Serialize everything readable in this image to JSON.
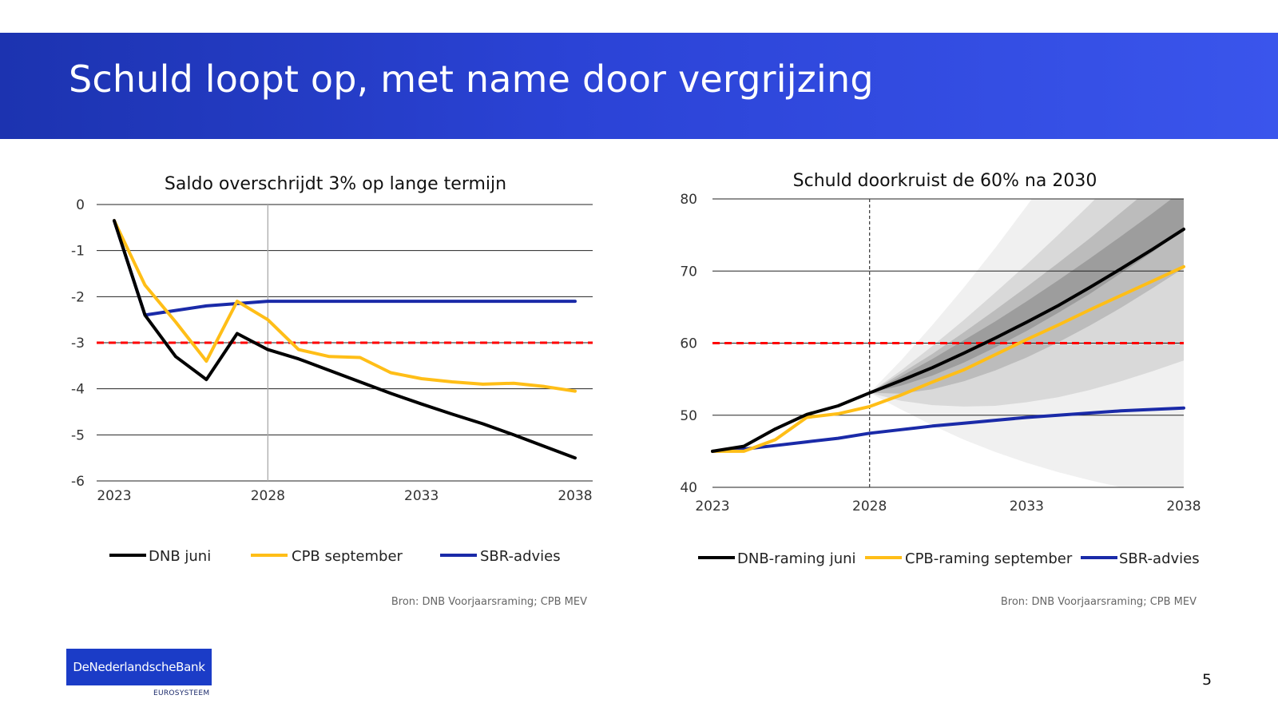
{
  "slide": {
    "title": "Schuld loopt op, met name door vergrijzing",
    "page_number": "5",
    "logo_text": "DeNederlandscheBank",
    "logo_subtext": "EUROSYSTEEM"
  },
  "colors": {
    "banner_start": "#1c33b0",
    "banner_end": "#3a55ec",
    "dnb": "#000000",
    "cpb": "#ffbe17",
    "sbr": "#1a2aa8",
    "threshold": "#ff0000"
  },
  "chart_data": [
    {
      "type": "line",
      "title": "Saldo overschrijdt 3% op lange termijn",
      "x": [
        2023,
        2024,
        2025,
        2026,
        2027,
        2028,
        2029,
        2030,
        2031,
        2032,
        2033,
        2034,
        2035,
        2036,
        2037,
        2038
      ],
      "x_ticks": [
        "2023",
        "2028",
        "2033",
        "2038"
      ],
      "y_ticks": [
        "0",
        "-1",
        "-2",
        "-3",
        "-4",
        "-5",
        "-6"
      ],
      "ylim": [
        -6,
        0
      ],
      "grid": "horizontal",
      "threshold": -3,
      "vertical_marker": 2028,
      "series": [
        {
          "name": "DNB juni",
          "color": "#000000",
          "values": [
            -0.35,
            -2.4,
            -3.3,
            -3.8,
            -2.8,
            -3.15,
            -3.35,
            -3.6,
            -3.85,
            -4.1,
            -4.33,
            -4.55,
            -4.76,
            -5.0,
            -5.25,
            -5.5
          ]
        },
        {
          "name": "CPB september",
          "color": "#ffbe17",
          "values": [
            -0.35,
            -1.75,
            -2.55,
            -3.4,
            -2.1,
            -2.5,
            -3.15,
            -3.3,
            -3.32,
            -3.65,
            -3.78,
            -3.85,
            -3.9,
            -3.88,
            -3.95,
            -4.05
          ]
        },
        {
          "name": "SBR-advies",
          "color": "#1a2aa8",
          "values": [
            -0.35,
            -2.4,
            -2.3,
            -2.2,
            -2.15,
            -2.1,
            -2.1,
            -2.1,
            -2.1,
            -2.1,
            -2.1,
            -2.1,
            -2.1,
            -2.1,
            -2.1,
            -2.1
          ]
        }
      ],
      "source": "Bron: DNB Voorjaarsraming; CPB MEV"
    },
    {
      "type": "line",
      "title": "Schuld doorkruist de 60% na 2030",
      "x": [
        2023,
        2024,
        2025,
        2026,
        2027,
        2028,
        2029,
        2030,
        2031,
        2032,
        2033,
        2034,
        2035,
        2036,
        2037,
        2038
      ],
      "x_ticks": [
        "2023",
        "2028",
        "2033",
        "2038"
      ],
      "y_ticks": [
        "80",
        "70",
        "60",
        "50",
        "40"
      ],
      "ylim": [
        40,
        80
      ],
      "grid": "horizontal",
      "threshold": 60,
      "vertical_marker": 2028,
      "series": [
        {
          "name": "DNB-raming juni",
          "color": "#000000",
          "values": [
            45.0,
            45.7,
            48.1,
            50.1,
            51.3,
            53.1,
            54.8,
            56.6,
            58.6,
            60.7,
            62.9,
            65.2,
            67.7,
            70.3,
            73.0,
            75.8
          ]
        },
        {
          "name": "CPB-raming september",
          "color": "#ffbe17",
          "values": [
            45.0,
            45.0,
            46.6,
            49.7,
            50.2,
            51.2,
            52.8,
            54.6,
            56.3,
            58.4,
            60.5,
            62.5,
            64.6,
            66.6,
            68.6,
            70.6
          ]
        },
        {
          "name": "SBR-advies",
          "color": "#1a2aa8",
          "values": [
            45.0,
            45.3,
            45.8,
            46.3,
            46.8,
            47.5,
            48.0,
            48.5,
            48.9,
            49.3,
            49.7,
            50.0,
            50.3,
            50.6,
            50.8,
            51.0
          ]
        }
      ],
      "fan": {
        "start_year": 2028,
        "bands": [
          {
            "color": "#f0f0f0",
            "lower": [
              53.1,
              50.8,
              48.6,
              46.6,
              44.9,
              43.4,
              42.1,
              41.0,
              40.0,
              39.2,
              38.5
            ],
            "upper": [
              53.1,
              57.6,
              62.5,
              67.7,
              73.2,
              79.0,
              85.0,
              91.0,
              97.0,
              103.0,
              109.0
            ]
          },
          {
            "color": "#d9d9d9",
            "lower": [
              53.1,
              52.0,
              51.4,
              51.2,
              51.3,
              51.8,
              52.5,
              53.5,
              54.7,
              56.1,
              57.6
            ],
            "upper": [
              53.1,
              56.2,
              59.6,
              63.2,
              67.0,
              70.9,
              75.0,
              79.2,
              83.6,
              88.0,
              92.6
            ]
          },
          {
            "color": "#bcbcbc",
            "lower": [
              53.1,
              53.0,
              53.6,
              54.7,
              56.2,
              58.0,
              60.1,
              62.4,
              64.9,
              67.6,
              70.4
            ],
            "upper": [
              53.1,
              55.8,
              58.5,
              61.5,
              64.6,
              67.8,
              71.1,
              74.5,
              78.1,
              81.7,
              85.5
            ]
          },
          {
            "color": "#9d9d9d",
            "lower": [
              53.1,
              54.1,
              55.5,
              57.3,
              59.4,
              61.7,
              64.2,
              66.8,
              69.7,
              72.6,
              75.7
            ],
            "upper": [
              53.1,
              55.4,
              57.8,
              60.4,
              63.0,
              65.8,
              68.7,
              71.7,
              74.8,
              78.0,
              81.3
            ]
          }
        ]
      },
      "source": "Bron: DNB Voorjaarsraming; CPB MEV"
    }
  ]
}
